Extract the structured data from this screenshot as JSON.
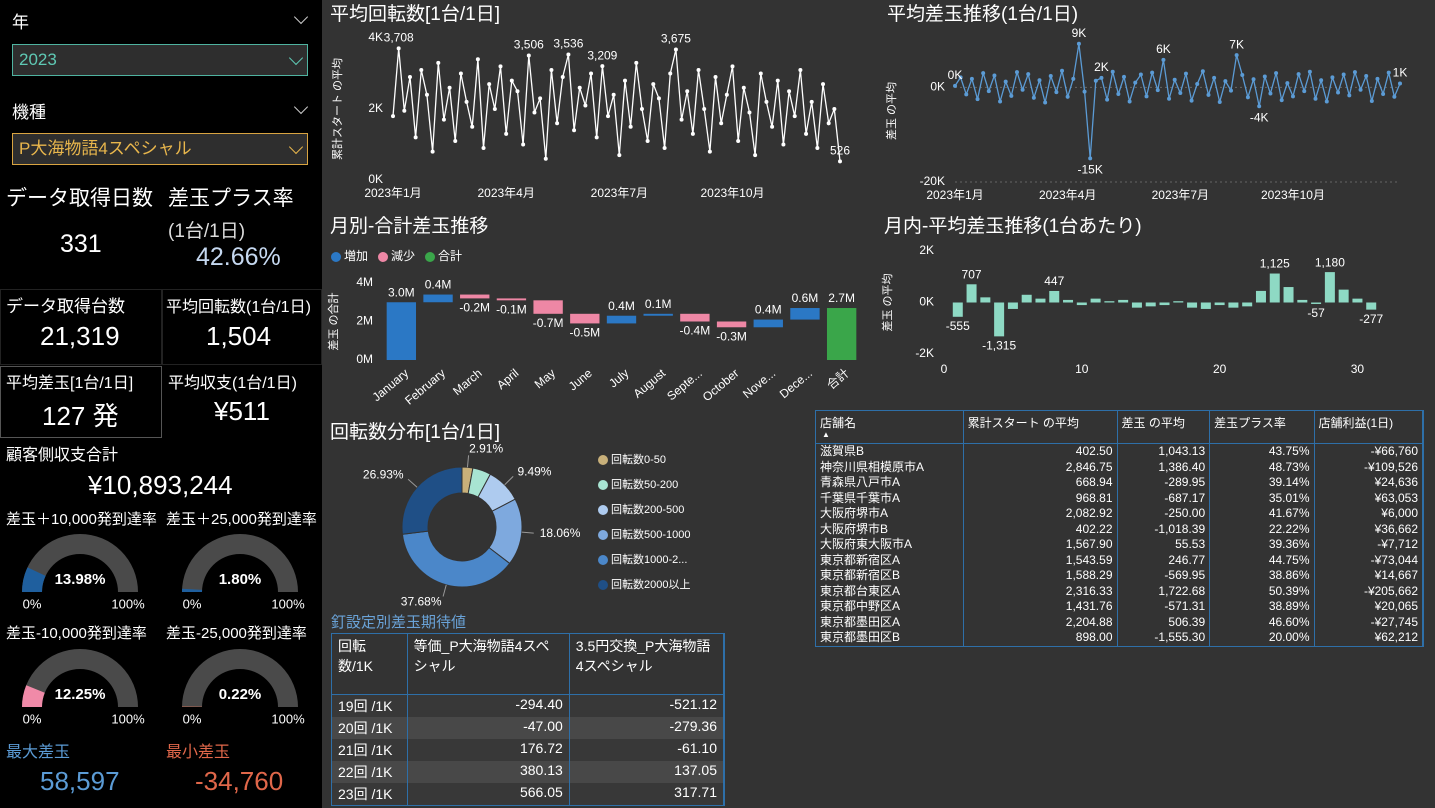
{
  "slicers": [
    {
      "label": "年",
      "value": "2023"
    },
    {
      "label": "機種",
      "value": "P大海物語4スペシャル"
    }
  ],
  "cards": [
    {
      "label": "データ取得日数",
      "value": "331"
    },
    {
      "label": "差玉プラス率",
      "sublabel": "(1台/1日)",
      "value": "42.66%"
    },
    {
      "label": "データ取得台数",
      "value": "21,319"
    },
    {
      "label": "平均回転数(1台/1日)",
      "value": "1,504"
    },
    {
      "label": "平均差玉[1台/1日]",
      "value": "127 発"
    },
    {
      "label": "平均収支(1台/1日)",
      "value": "¥511"
    },
    {
      "label": "顧客側収支合計",
      "value": "¥10,893,244"
    },
    {
      "label": "最大差玉",
      "value": "58,597"
    },
    {
      "label": "最小差玉",
      "value": "-34,760"
    }
  ],
  "chart_data": [
    {
      "type": "line",
      "title": "平均回転数[1台/1日]",
      "y_label": "累計スタート の平均",
      "color": "#ffffff",
      "categories": [
        "2023年1月",
        null,
        null,
        null,
        null,
        null,
        null,
        null,
        null,
        null,
        null,
        null,
        null,
        null,
        null,
        null,
        null,
        null,
        null,
        null,
        "2023年4月",
        null,
        null,
        null,
        null,
        null,
        null,
        null,
        null,
        null,
        null,
        null,
        null,
        null,
        null,
        null,
        null,
        null,
        null,
        null,
        "2023年7月",
        null,
        null,
        null,
        null,
        null,
        null,
        null,
        null,
        null,
        null,
        null,
        null,
        null,
        null,
        null,
        null,
        null,
        null,
        null,
        "2023年10月",
        null,
        null,
        null,
        null,
        null,
        null,
        null,
        null,
        null,
        null,
        null,
        null,
        null,
        null,
        null,
        null,
        null,
        null,
        null
      ],
      "values": [
        1800,
        3708,
        1950,
        2900,
        1200,
        3100,
        2400,
        800,
        3300,
        1700,
        2600,
        1100,
        3000,
        2200,
        1500,
        3400,
        900,
        2700,
        2000,
        3200,
        1300,
        2800,
        2500,
        1000,
        3506,
        1900,
        2300,
        600,
        3100,
        1600,
        2900,
        3536,
        1400,
        2600,
        2100,
        3000,
        1200,
        3209,
        1800,
        2400,
        700,
        2800,
        1500,
        3300,
        2000,
        1100,
        2700,
        2300,
        900,
        3000,
        3675,
        1700,
        2500,
        1300,
        3100,
        2000,
        800,
        2900,
        1600,
        2400,
        3200,
        1100,
        2600,
        1900,
        700,
        3000,
        2200,
        1500,
        2800,
        1000,
        2500,
        1800,
        3100,
        1300,
        2200,
        900,
        2700,
        1600,
        2000,
        526
      ],
      "value_labels": [
        null,
        "3,708",
        null,
        null,
        null,
        null,
        null,
        null,
        null,
        null,
        null,
        null,
        null,
        null,
        null,
        null,
        null,
        null,
        null,
        null,
        null,
        null,
        null,
        null,
        "3,506",
        null,
        null,
        null,
        null,
        null,
        null,
        "3,536",
        null,
        null,
        null,
        null,
        null,
        "3,209",
        null,
        null,
        null,
        null,
        null,
        null,
        null,
        null,
        null,
        null,
        null,
        null,
        "3,675",
        null,
        null,
        null,
        null,
        null,
        null,
        null,
        null,
        null,
        null,
        null,
        null,
        null,
        null,
        null,
        null,
        null,
        null,
        null,
        null,
        null,
        null,
        null,
        null,
        null,
        null,
        null,
        null,
        "526"
      ],
      "ylim": [
        0,
        4000
      ],
      "yticks": [
        {
          "value": 0,
          "label": "0K"
        },
        {
          "value": 2000,
          "label": "2K"
        },
        {
          "value": 4000,
          "label": "4K"
        }
      ],
      "grid": false
    },
    {
      "type": "line",
      "title": "平均差玉推移(1台/1日)",
      "y_label": "差玉 の平均",
      "color": "#5b9bd5",
      "categories": [
        "2023年1月",
        null,
        null,
        null,
        null,
        null,
        null,
        null,
        null,
        null,
        null,
        null,
        null,
        null,
        null,
        null,
        null,
        null,
        null,
        null,
        "2023年4月",
        null,
        null,
        null,
        null,
        null,
        null,
        null,
        null,
        null,
        null,
        null,
        null,
        null,
        null,
        null,
        null,
        null,
        null,
        null,
        "2023年7月",
        null,
        null,
        null,
        null,
        null,
        null,
        null,
        null,
        null,
        null,
        null,
        null,
        null,
        null,
        null,
        null,
        null,
        null,
        null,
        "2023年10月",
        null,
        null,
        null,
        null,
        null,
        null,
        null,
        null,
        null,
        null,
        null,
        null,
        null,
        null,
        null,
        null,
        null,
        null,
        null
      ],
      "values": [
        300,
        2100,
        -1500,
        1800,
        -2500,
        3000,
        -800,
        2500,
        -3000,
        1200,
        -1800,
        3200,
        -500,
        2800,
        -2200,
        1500,
        -3200,
        2400,
        -1000,
        3500,
        -2000,
        1800,
        9200,
        -900,
        -15000,
        1400,
        2000,
        -2600,
        3300,
        -1400,
        2200,
        -3000,
        1000,
        2700,
        -1900,
        3100,
        -600,
        5800,
        -2400,
        1600,
        -1200,
        2900,
        -2800,
        700,
        3400,
        -1600,
        2000,
        -3100,
        1300,
        -700,
        6800,
        2600,
        -2100,
        1700,
        -4000,
        2300,
        -1300,
        3000,
        -2700,
        900,
        -1900,
        2800,
        -800,
        3300,
        -2400,
        1500,
        -3000,
        2100,
        -1100,
        2700,
        -1700,
        3200,
        -500,
        2400,
        -2900,
        1800,
        -1400,
        3100,
        -2000,
        800
      ],
      "value_labels": [
        "0K",
        null,
        null,
        null,
        null,
        null,
        null,
        null,
        null,
        null,
        null,
        null,
        null,
        null,
        null,
        null,
        null,
        null,
        null,
        null,
        null,
        null,
        "9K",
        null,
        "-15K",
        null,
        "2K",
        null,
        null,
        null,
        null,
        null,
        null,
        null,
        null,
        null,
        null,
        "6K",
        null,
        null,
        null,
        null,
        null,
        null,
        null,
        null,
        null,
        null,
        null,
        null,
        "7K",
        null,
        null,
        null,
        "-4K",
        null,
        null,
        null,
        null,
        null,
        null,
        null,
        null,
        null,
        null,
        null,
        null,
        null,
        null,
        null,
        null,
        null,
        null,
        null,
        null,
        null,
        null,
        null,
        null,
        "1K"
      ],
      "ylim": [
        -20000,
        10000
      ],
      "yticks": [
        {
          "value": -20000,
          "label": "-20K"
        },
        {
          "value": 0,
          "label": "0K"
        }
      ],
      "grid": true
    },
    {
      "type": "waterfall",
      "title": "月別-合計差玉推移",
      "y_label": "差玉 の合計",
      "legend": [
        {
          "name": "増加",
          "color": "#2b78c5"
        },
        {
          "name": "減少",
          "color": "#ee87a5"
        },
        {
          "name": "合計",
          "color": "#3aa64a"
        }
      ],
      "categories": [
        "January",
        "February",
        "March",
        "April",
        "May",
        "June",
        "July",
        "August",
        "Septe...",
        "October",
        "Nove...",
        "Dece...",
        "合計"
      ],
      "values": [
        3000000,
        400000,
        -200000,
        -100000,
        -700000,
        -500000,
        400000,
        100000,
        -400000,
        -300000,
        400000,
        600000,
        2700000
      ],
      "value_labels": [
        "3.0M",
        "0.4M",
        "-0.2M",
        "-0.1M",
        "-0.7M",
        "-0.5M",
        "0.4M",
        "0.1M",
        "-0.4M",
        "-0.3M",
        "0.4M",
        "0.6M",
        "2.7M"
      ],
      "ylim": [
        0,
        4000000
      ],
      "yticks": [
        {
          "value": 0,
          "label": "0M"
        },
        {
          "value": 2000000,
          "label": "2M"
        },
        {
          "value": 4000000,
          "label": "4M"
        }
      ]
    },
    {
      "type": "bar",
      "title": "月内-平均差玉推移(1台あたり)",
      "y_label": "差玉 の平均",
      "color": "#8ed9c4",
      "x": [
        1,
        2,
        3,
        4,
        5,
        6,
        7,
        8,
        9,
        10,
        11,
        12,
        13,
        14,
        15,
        16,
        17,
        18,
        19,
        20,
        21,
        22,
        23,
        24,
        25,
        26,
        27,
        28,
        29,
        30,
        31
      ],
      "values": [
        -555,
        707,
        200,
        -1315,
        -250,
        300,
        150,
        447,
        100,
        -100,
        150,
        50,
        100,
        -200,
        -150,
        -100,
        50,
        -200,
        -250,
        -100,
        -200,
        -150,
        450,
        1125,
        600,
        100,
        -57,
        1180,
        500,
        150,
        -277
      ],
      "value_labels": [
        "-555",
        "707",
        null,
        "-1,315",
        null,
        null,
        null,
        "447",
        null,
        null,
        null,
        null,
        null,
        null,
        null,
        null,
        null,
        null,
        null,
        null,
        null,
        null,
        null,
        "1,125",
        null,
        null,
        "-57",
        "1,180",
        null,
        null,
        "-277"
      ],
      "xlim": [
        0,
        32
      ],
      "xticks": [
        0,
        10,
        20,
        30
      ],
      "ylim": [
        -2000,
        2000
      ],
      "yticks": [
        {
          "value": -2000,
          "label": "-2K"
        },
        {
          "value": 0,
          "label": "0K"
        },
        {
          "value": 2000,
          "label": "2K"
        }
      ]
    },
    {
      "type": "pie",
      "title": "回転数分布[1台/1日]",
      "categories": [
        "回転数0-50",
        "回転数50-200",
        "回転数200-500",
        "回転数500-1000",
        "回転数1000-2...",
        "回転数2000以上"
      ],
      "colors": [
        "#c8b07a",
        "#a8e4d2",
        "#aecbef",
        "#7ea9de",
        "#4b87c9",
        "#1f4f86"
      ],
      "values": [
        2.91,
        4.93,
        9.49,
        18.06,
        37.68,
        26.93
      ],
      "value_labels": [
        "2.91%",
        null,
        "9.49%",
        "18.06%",
        "37.68%",
        "26.93%"
      ]
    },
    {
      "type": "gauge",
      "title": "差玉＋10,000発到達率",
      "values": [
        13.98
      ],
      "value_labels": [
        "13.98%"
      ],
      "color": "#1f5f9e",
      "label_color": "#8fb9e8",
      "ylim": [
        0,
        100
      ],
      "yticks": [
        {
          "value": 0,
          "label": "0%"
        },
        {
          "value": 100,
          "label": "100%"
        }
      ]
    },
    {
      "type": "gauge",
      "title": "差玉＋25,000発到達率",
      "values": [
        1.8
      ],
      "value_labels": [
        "1.80%"
      ],
      "color": "#1f5f9e",
      "label_color": "#8fb9e8",
      "ylim": [
        0,
        100
      ],
      "yticks": [
        {
          "value": 0,
          "label": "0%"
        },
        {
          "value": 100,
          "label": "100%"
        }
      ]
    },
    {
      "type": "gauge",
      "title": "差玉-10,000発到達率",
      "values": [
        12.25
      ],
      "value_labels": [
        "12.25%"
      ],
      "color": "#f08aa8",
      "label_color": "#f08aa8",
      "ylim": [
        0,
        100
      ],
      "yticks": [
        {
          "value": 0,
          "label": "0%"
        },
        {
          "value": 100,
          "label": "100%"
        }
      ]
    },
    {
      "type": "gauge",
      "title": "差玉-25,000発到達率",
      "values": [
        0.22
      ],
      "value_labels": [
        "0.22%"
      ],
      "color": "#f47c5c",
      "label_color": "#f47c5c",
      "ylim": [
        0,
        100
      ],
      "yticks": [
        {
          "value": 0,
          "label": "0%"
        },
        {
          "value": 100,
          "label": "100%"
        }
      ]
    }
  ],
  "nail_table": {
    "title": "釘設定別差玉期待値",
    "columns": [
      "回転数/1K",
      "等価_P大海物語4スペシャル",
      "3.5円交換_P大海物語4スペシャル"
    ],
    "rows": [
      [
        "19回 /1K",
        "-294.40",
        "-521.12"
      ],
      [
        "20回 /1K",
        "-47.00",
        "-279.36"
      ],
      [
        "21回 /1K",
        "176.72",
        "-61.10"
      ],
      [
        "22回 /1K",
        "380.13",
        "137.05"
      ],
      [
        "23回 /1K",
        "566.05",
        "317.71"
      ]
    ]
  },
  "store_table": {
    "columns": [
      "店舗名",
      "累計スタート の平均",
      "差玉 の平均",
      "差玉プラス率",
      "店舗利益(1日)"
    ],
    "rows": [
      [
        "滋賀県B",
        "402.50",
        "1,043.13",
        "43.75%",
        "-¥66,760"
      ],
      [
        "神奈川県相模原市A",
        "2,846.75",
        "1,386.40",
        "48.73%",
        "-¥109,526"
      ],
      [
        "青森県八戸市A",
        "668.94",
        "-289.95",
        "39.14%",
        "¥24,636"
      ],
      [
        "千葉県千葉市A",
        "968.81",
        "-687.17",
        "35.01%",
        "¥63,053"
      ],
      [
        "大阪府堺市A",
        "2,082.92",
        "-250.00",
        "41.67%",
        "¥6,000"
      ],
      [
        "大阪府堺市B",
        "402.22",
        "-1,018.39",
        "22.22%",
        "¥36,662"
      ],
      [
        "大阪府東大阪市A",
        "1,567.90",
        "55.53",
        "39.36%",
        "-¥7,712"
      ],
      [
        "東京都新宿区A",
        "1,543.59",
        "246.77",
        "44.75%",
        "-¥73,044"
      ],
      [
        "東京都新宿区B",
        "1,588.29",
        "-569.95",
        "38.86%",
        "¥14,667"
      ],
      [
        "東京都台東区A",
        "2,316.33",
        "1,722.68",
        "50.39%",
        "-¥205,662"
      ],
      [
        "東京都中野区A",
        "1,431.76",
        "-571.31",
        "38.89%",
        "¥20,065"
      ],
      [
        "東京都墨田区A",
        "2,204.88",
        "506.39",
        "46.60%",
        "-¥27,745"
      ],
      [
        "東京都墨田区B",
        "898.00",
        "-1,555.30",
        "20.00%",
        "¥62,212"
      ]
    ]
  }
}
